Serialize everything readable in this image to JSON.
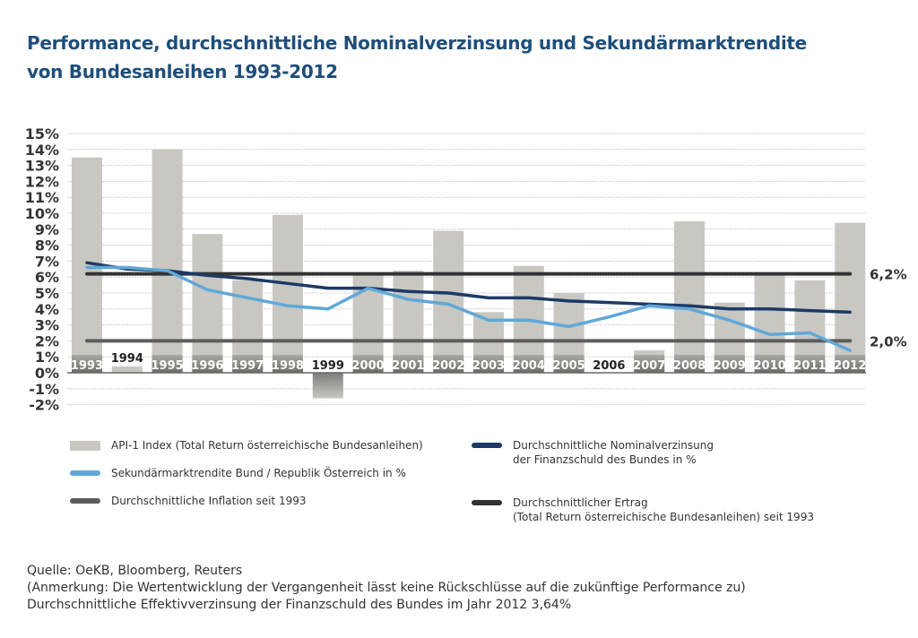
{
  "title": {
    "line1": "Performance, durchschnittliche Nominalverzinsung und Sekundärmarktrendite",
    "line2": "von Bundesanleihen 1993-2012"
  },
  "chart_data": {
    "type": "bar",
    "title": "Performance, durchschnittliche Nominalverzinsung und Sekundärmarktrendite von Bundesanleihen 1993-2012",
    "xlabel": "",
    "ylabel": "",
    "ylim": [
      -2,
      15
    ],
    "y_ticks": [
      "15%",
      "14%",
      "13%",
      "12%",
      "11%",
      "10%",
      "9%",
      "8%",
      "7%",
      "6%",
      "5%",
      "4%",
      "3%",
      "2%",
      "1%",
      "0%",
      "-1%",
      "-2%"
    ],
    "y_tick_values": [
      15,
      14,
      13,
      12,
      11,
      10,
      9,
      8,
      7,
      6,
      5,
      4,
      3,
      2,
      1,
      0,
      -1,
      -2
    ],
    "grid": true,
    "categories": [
      "1993",
      "1994",
      "1995",
      "1996",
      "1997",
      "1998",
      "1999",
      "2000",
      "2001",
      "2002",
      "2003",
      "2004",
      "2005",
      "2006",
      "2007",
      "2008",
      "2009",
      "2010",
      "2011",
      "2012"
    ],
    "series": [
      {
        "name": "API-1 Index (Total Return österreichische Bundesanleihen)",
        "type": "bar",
        "color": "#c8c7c2",
        "values": [
          13.5,
          0.4,
          14.0,
          8.7,
          5.8,
          9.9,
          -1.6,
          6.1,
          6.4,
          8.9,
          3.8,
          6.7,
          5.0,
          0.0,
          1.4,
          9.5,
          4.4,
          6.1,
          5.8,
          9.4
        ]
      },
      {
        "name": "Durchschnittliche Nominalverzinsung der Finanzschuld des Bundes in %",
        "type": "line",
        "color": "#1c3a66",
        "values": [
          6.9,
          6.5,
          6.4,
          6.1,
          5.9,
          5.6,
          5.3,
          5.3,
          5.1,
          5.0,
          4.7,
          4.7,
          4.5,
          4.4,
          4.3,
          4.2,
          4.0,
          4.0,
          3.9,
          3.8
        ]
      },
      {
        "name": "Sekundärmarktrendite Bund / Republik Österreich in %",
        "type": "line",
        "color": "#5fa8d8",
        "values": [
          6.6,
          6.6,
          6.4,
          5.2,
          4.7,
          4.2,
          4.0,
          5.3,
          4.6,
          4.3,
          3.3,
          3.3,
          2.9,
          3.5,
          4.2,
          4.0,
          3.3,
          2.4,
          2.5,
          1.4
        ]
      },
      {
        "name": "Durchschnittliche Inflation seit 1993",
        "type": "hline",
        "color": "#5d5d5d",
        "value": 2.0,
        "label": "2,0%"
      },
      {
        "name": "Durchschnittlicher Ertrag (Total Return österreichische Bundesanleihen) seit 1993",
        "type": "hline",
        "color": "#333333",
        "value": 6.2,
        "label": "6,2%"
      }
    ],
    "outside_label_years": [
      "1994",
      "1999",
      "2006"
    ],
    "legend_position": "bottom"
  },
  "legend": {
    "items": [
      {
        "lines": [
          "API-1 Index (Total Return österreichische Bundesanleihen)"
        ],
        "color": "#c8c7c2",
        "kind": "bar"
      },
      {
        "lines": [
          "Durchschnittliche Nominalverzinsung",
          "der Finanzschuld des Bundes in %"
        ],
        "color": "#1c3a66",
        "kind": "line"
      },
      {
        "lines": [
          "Sekundärmarktrendite Bund / Republik Österreich in %"
        ],
        "color": "#5fa8d8",
        "kind": "line"
      },
      {
        "lines": [
          "Durchschnittliche Inflation seit 1993"
        ],
        "color": "#5d5d5d",
        "kind": "line"
      },
      {
        "lines": [
          "Durchschnittlicher Ertrag",
          "(Total Return österreichische Bundesanleihen) seit 1993"
        ],
        "color": "#333333",
        "kind": "line"
      }
    ]
  },
  "notes": {
    "source": "Quelle: OeKB, Bloomberg, Reuters",
    "remark": "(Anmerkung: Die Wertentwicklung der Vergangenheit lässt keine Rückschlüsse auf die zukünftige Performance zu)",
    "effective": "Durchschnittliche Effektivverzinsung der Finanzschuld des Bundes im Jahr 2012 3,64%"
  }
}
